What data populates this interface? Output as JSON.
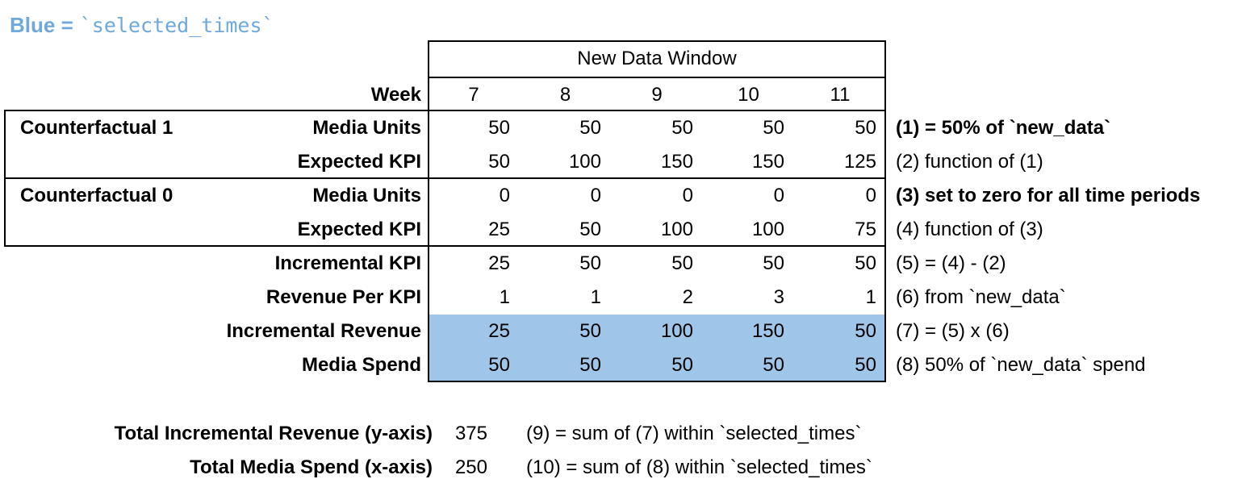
{
  "title": {
    "prefix": "Blue =",
    "code": "`selected_times`"
  },
  "colors": {
    "highlight_blue": "#9FC5E8",
    "title_blue": "#6FA8DC",
    "border": "#000000"
  },
  "table": {
    "window_header": "New Data Window",
    "week_label": "Week",
    "weeks": [
      "7",
      "8",
      "9",
      "10",
      "11"
    ],
    "group_labels": [
      "Counterfactual 1",
      "Counterfactual 0"
    ],
    "rows": [
      {
        "label": "Media Units",
        "values": [
          "50",
          "50",
          "50",
          "50",
          "50"
        ],
        "annotation": "(1) = 50% of `new_data`"
      },
      {
        "label": "Expected KPI",
        "values": [
          "50",
          "100",
          "150",
          "150",
          "125"
        ],
        "annotation": "(2) function of (1)"
      },
      {
        "label": "Media Units",
        "values": [
          "0",
          "0",
          "0",
          "0",
          "0"
        ],
        "annotation": "(3) set to zero for all time periods"
      },
      {
        "label": "Expected KPI",
        "values": [
          "25",
          "50",
          "100",
          "100",
          "75"
        ],
        "annotation": "(4) function of (3)"
      },
      {
        "label": "Incremental KPI",
        "values": [
          "25",
          "50",
          "50",
          "50",
          "50"
        ],
        "annotation": "(5) = (4) - (2)"
      },
      {
        "label": "Revenue Per KPI",
        "values": [
          "1",
          "1",
          "2",
          "3",
          "1"
        ],
        "annotation": "(6) from `new_data`"
      },
      {
        "label": "Incremental Revenue",
        "values": [
          "25",
          "50",
          "100",
          "150",
          "50"
        ],
        "annotation": "(7) = (5) x (6)"
      },
      {
        "label": "Media Spend",
        "values": [
          "50",
          "50",
          "50",
          "50",
          "50"
        ],
        "annotation": "(8) 50% of `new_data` spend"
      }
    ]
  },
  "totals": [
    {
      "label": "Total Incremental Revenue (y-axis)",
      "value": "375",
      "annotation": "(9) = sum of (7) within `selected_times`"
    },
    {
      "label": "Total Media Spend (x-axis)",
      "value": "250",
      "annotation": "(10) = sum of (8) within `selected_times`"
    }
  ]
}
